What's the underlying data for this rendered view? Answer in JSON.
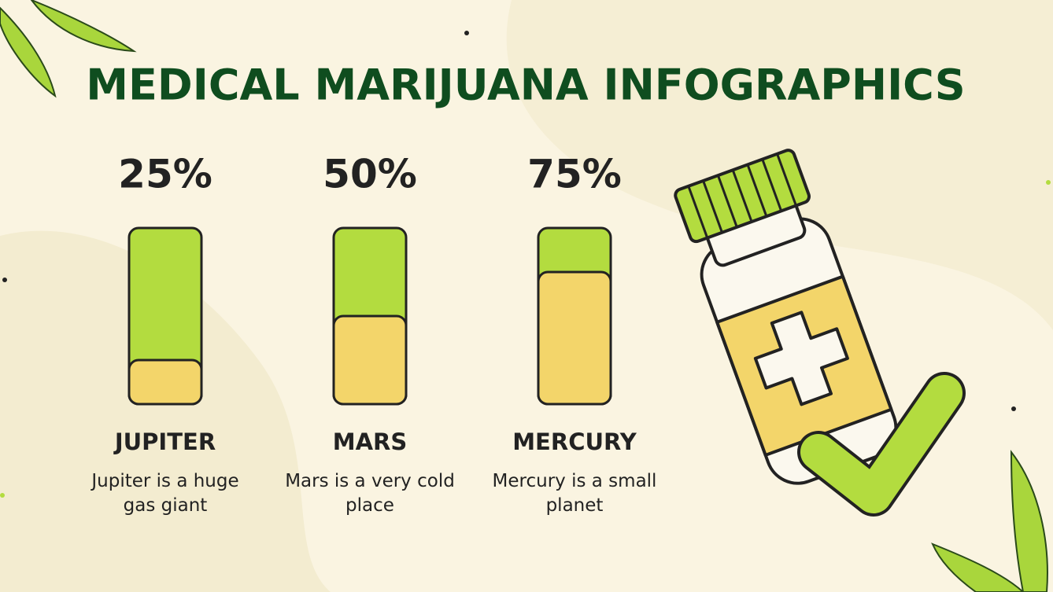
{
  "chart_data": {
    "type": "bar",
    "title": "MEDICAL MARIJUANA INFOGRAPHICS",
    "categories": [
      "JUPITER",
      "MARS",
      "MERCURY"
    ],
    "values": [
      25,
      50,
      75
    ],
    "value_labels": [
      "25%",
      "50%",
      "75%"
    ],
    "descriptions": [
      "Jupiter is a huge gas giant",
      "Mars is a very cold place",
      "Mercury is a small planet"
    ],
    "ylim": [
      0,
      100
    ],
    "color": "#f3d56a",
    "track_color": "#b3dc3f"
  }
}
